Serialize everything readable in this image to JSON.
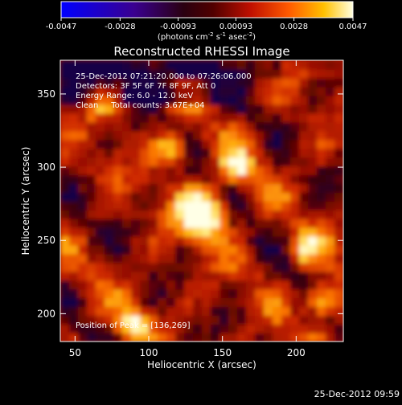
{
  "colorbar": {
    "tick_labels": [
      "-0.0047",
      "-0.0028",
      "-0.00093",
      "0.00093",
      "0.0028",
      "0.0047"
    ],
    "tick_values": [
      -0.0047,
      -0.0028,
      -0.00093,
      0.00093,
      0.0028,
      0.0047
    ],
    "units_main": "(photons cm",
    "units_exp1": "-2",
    "units_mid": " s",
    "units_exp2": "-1",
    "units_end": " asec",
    "units_exp3": "-2",
    "units_close": ")",
    "range": [
      -0.0047,
      0.0047
    ]
  },
  "chart_data": {
    "type": "heatmap",
    "title": "Reconstructed RHESSI Image",
    "xlabel": "Heliocentric X (arcsec)",
    "ylabel": "Heliocentric Y (arcsec)",
    "x_ticks": [
      50,
      100,
      150,
      200
    ],
    "y_ticks": [
      200,
      250,
      300,
      350
    ],
    "xlim": [
      40,
      232
    ],
    "ylim": [
      181,
      373
    ],
    "colormap": "rainbow-heat (blue-purple-red-orange-yellow-white)",
    "peak": {
      "x": 136,
      "y": 269
    },
    "bright_sources": [
      {
        "x": 136,
        "y": 269,
        "intensity": 1.0
      },
      {
        "x": 218,
        "y": 210,
        "intensity": 0.75
      },
      {
        "x": 115,
        "y": 312,
        "intensity": 0.6
      },
      {
        "x": 160,
        "y": 300,
        "intensity": 0.55
      },
      {
        "x": 90,
        "y": 195,
        "intensity": 0.55
      },
      {
        "x": 205,
        "y": 245,
        "intensity": 0.5
      },
      {
        "x": 70,
        "y": 345,
        "intensity": 0.4
      }
    ],
    "info_lines": [
      "25-Dec-2012 07:21:20.000 to 07:26:06.000",
      "Detectors: 3F 5F 6F 7F 8F 9F, Att 0",
      "Energy Range: 6.0 - 12.0 keV",
      "Clean     Total counts: 3.67E+04"
    ],
    "peak_label": "Position of Peak = [136,269]"
  },
  "footer_timestamp": "25-Dec-2012 09:59"
}
